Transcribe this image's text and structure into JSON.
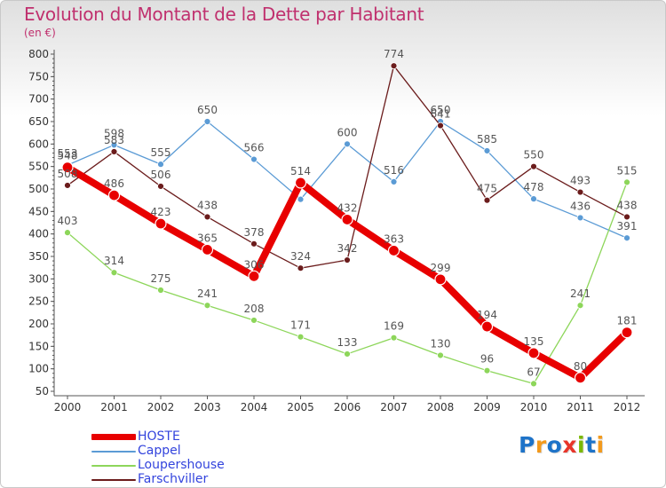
{
  "title": "Evolution du Montant de la Dette par Habitant",
  "unit_label": "(en €)",
  "colors": {
    "title": "#c0306e",
    "axis": "#555555",
    "grid": "#dddddd",
    "tick_text": "#333333",
    "legend_text": "#3344dd"
  },
  "brand": {
    "text": "Proxiti",
    "letters": [
      "P",
      "r",
      "o",
      "x",
      "i",
      "t",
      "i"
    ]
  },
  "chart_data": {
    "type": "line",
    "title": "Evolution du Montant de la Dette par Habitant",
    "ylabel": "(en €)",
    "xlabel": "",
    "x": [
      "2000",
      "2001",
      "2002",
      "2003",
      "2004",
      "2005",
      "2006",
      "2007",
      "2008",
      "2009",
      "2010",
      "2011",
      "2012"
    ],
    "ylim": [
      50,
      800
    ],
    "yticks": [
      50,
      100,
      150,
      200,
      250,
      300,
      350,
      400,
      450,
      500,
      550,
      600,
      650,
      700,
      750,
      800
    ],
    "grid": false,
    "legend_position": "bottom-left",
    "series": [
      {
        "name": "HOSTE",
        "color": "#e80000",
        "values": [
          548,
          486,
          423,
          365,
          306,
          514,
          432,
          363,
          299,
          194,
          135,
          80,
          181
        ]
      },
      {
        "name": "Cappel",
        "color": "#5b9bd5",
        "values": [
          553,
          598,
          555,
          650,
          566,
          477,
          600,
          516,
          650,
          585,
          478,
          436,
          391
        ]
      },
      {
        "name": "Loupershouse",
        "color": "#8dd65a",
        "values": [
          403,
          314,
          275,
          241,
          208,
          171,
          133,
          169,
          130,
          96,
          67,
          241,
          515
        ]
      },
      {
        "name": "Farschviller",
        "color": "#6b1c1c",
        "values": [
          508,
          583,
          506,
          438,
          378,
          324,
          342,
          774,
          641,
          475,
          550,
          493,
          438
        ]
      }
    ],
    "data_labels": [
      {
        "series": "HOSTE",
        "values": [
          "548",
          "486",
          "423",
          "365",
          "306",
          "514",
          "432",
          "363",
          "299",
          "194",
          "135",
          "80",
          "181"
        ]
      },
      {
        "series": "Cappel",
        "values": [
          "553",
          "598",
          "555",
          "650",
          "566",
          "",
          "600",
          "516",
          "650",
          "585",
          "478",
          "436",
          "391"
        ]
      },
      {
        "series": "Loupershouse",
        "values": [
          "403",
          "314",
          "275",
          "241",
          "208",
          "171",
          "133",
          "169",
          "130",
          "96",
          "67",
          "241",
          "515"
        ]
      },
      {
        "series": "Farschviller",
        "values": [
          "508",
          "583",
          "506",
          "438",
          "378",
          "324",
          "342",
          "774",
          "641",
          "475",
          "550",
          "493",
          "438"
        ]
      }
    ]
  }
}
